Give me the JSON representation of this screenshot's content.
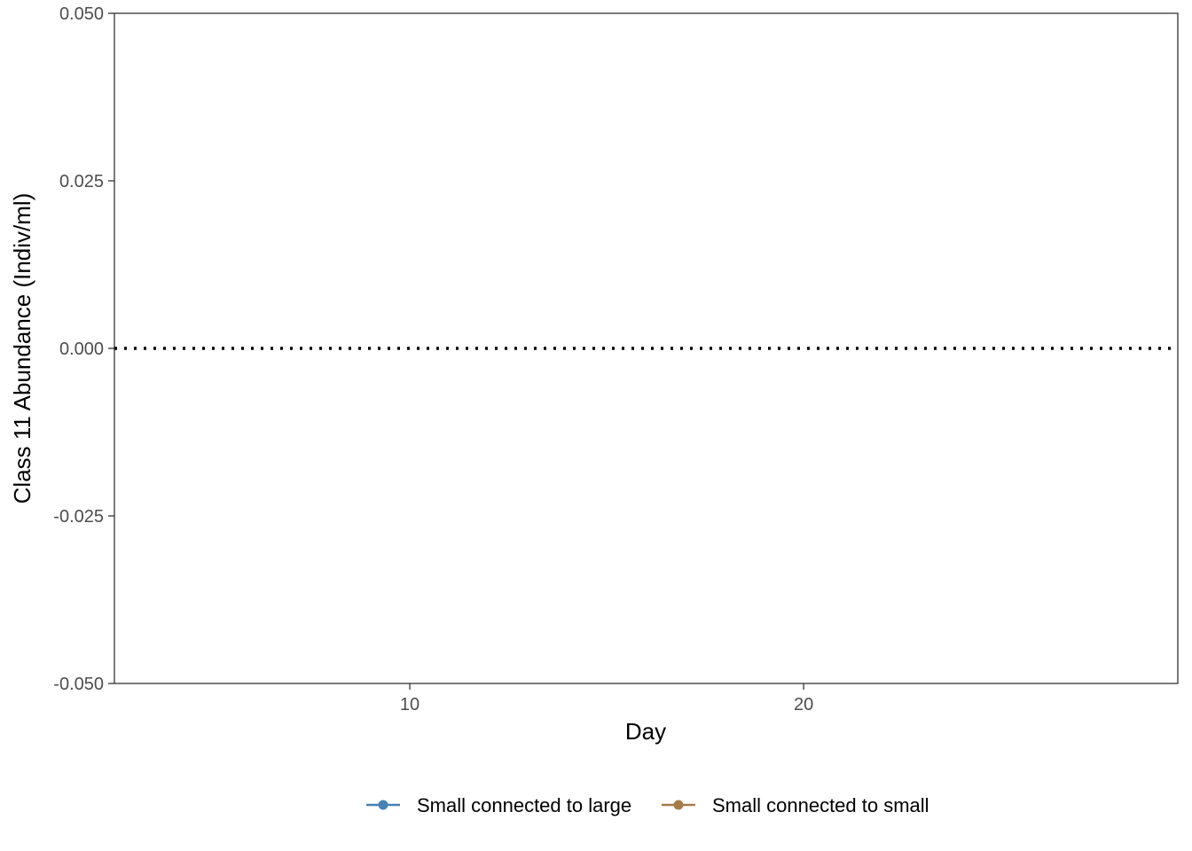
{
  "chart_data": {
    "type": "line",
    "xlabel": "Day",
    "ylabel": "Class 11 Abundance (Indiv/ml)",
    "xlim": [
      2.5,
      29.5
    ],
    "ylim": [
      -0.05,
      0.05
    ],
    "x_ticks": [
      10,
      20
    ],
    "x_tick_labels": [
      "10",
      "20"
    ],
    "y_ticks": [
      -0.05,
      -0.025,
      0,
      0.025,
      0.05
    ],
    "y_tick_labels": [
      "-0.050",
      "-0.025",
      "0.000",
      "0.025",
      "0.050"
    ],
    "reference_line": {
      "y": 0,
      "style": "dotted",
      "color": "#000000"
    },
    "series": [
      {
        "name": "Small connected to large",
        "color": "#4682b4",
        "x": [],
        "y": []
      },
      {
        "name": "Small connected to small",
        "color": "#a67c4a",
        "x": [],
        "y": []
      }
    ],
    "legend_position": "bottom",
    "grid": false
  }
}
